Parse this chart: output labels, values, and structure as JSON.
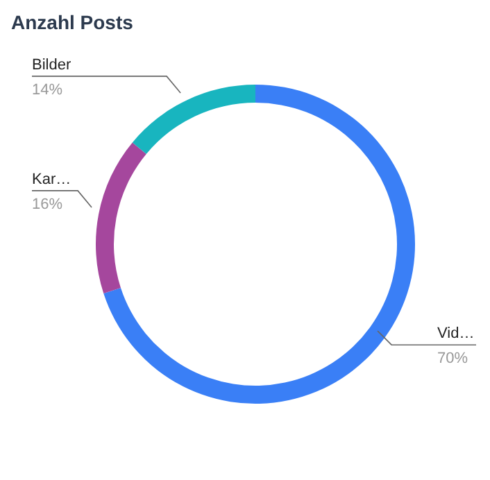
{
  "chart_data": {
    "type": "donut",
    "title": "Anzahl Posts",
    "categories": [
      "Vid…",
      "Kar…",
      "Bilder"
    ],
    "values": [
      70,
      16,
      14
    ],
    "value_labels": [
      "70%",
      "16%",
      "14%"
    ],
    "colors": [
      "#3a7ff6",
      "#a5479d",
      "#18b5bf"
    ],
    "legend": false
  }
}
